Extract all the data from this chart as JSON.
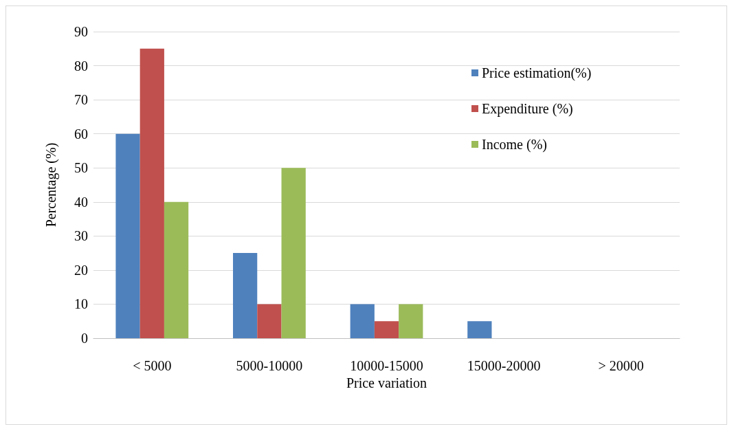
{
  "chart_data": {
    "type": "bar",
    "xlabel": "Price variation",
    "ylabel": "Percentage (%)",
    "categories": [
      "< 5000",
      "5000-10000",
      "10000-15000",
      "15000-20000",
      "> 20000"
    ],
    "series": [
      {
        "name": "Price estimation(%)",
        "color": "#4f81bd",
        "values": [
          60,
          25,
          10,
          5,
          0
        ]
      },
      {
        "name": "Expenditure (%)",
        "color": "#c0504d",
        "values": [
          85,
          10,
          5,
          0,
          0
        ]
      },
      {
        "name": "Income (%)",
        "color": "#9bbb59",
        "values": [
          40,
          50,
          10,
          0,
          0
        ]
      }
    ],
    "ylim": [
      0,
      90
    ],
    "yticks": [
      0,
      10,
      20,
      30,
      40,
      50,
      60,
      70,
      80,
      90
    ],
    "grid": "y",
    "legend": "top right"
  }
}
